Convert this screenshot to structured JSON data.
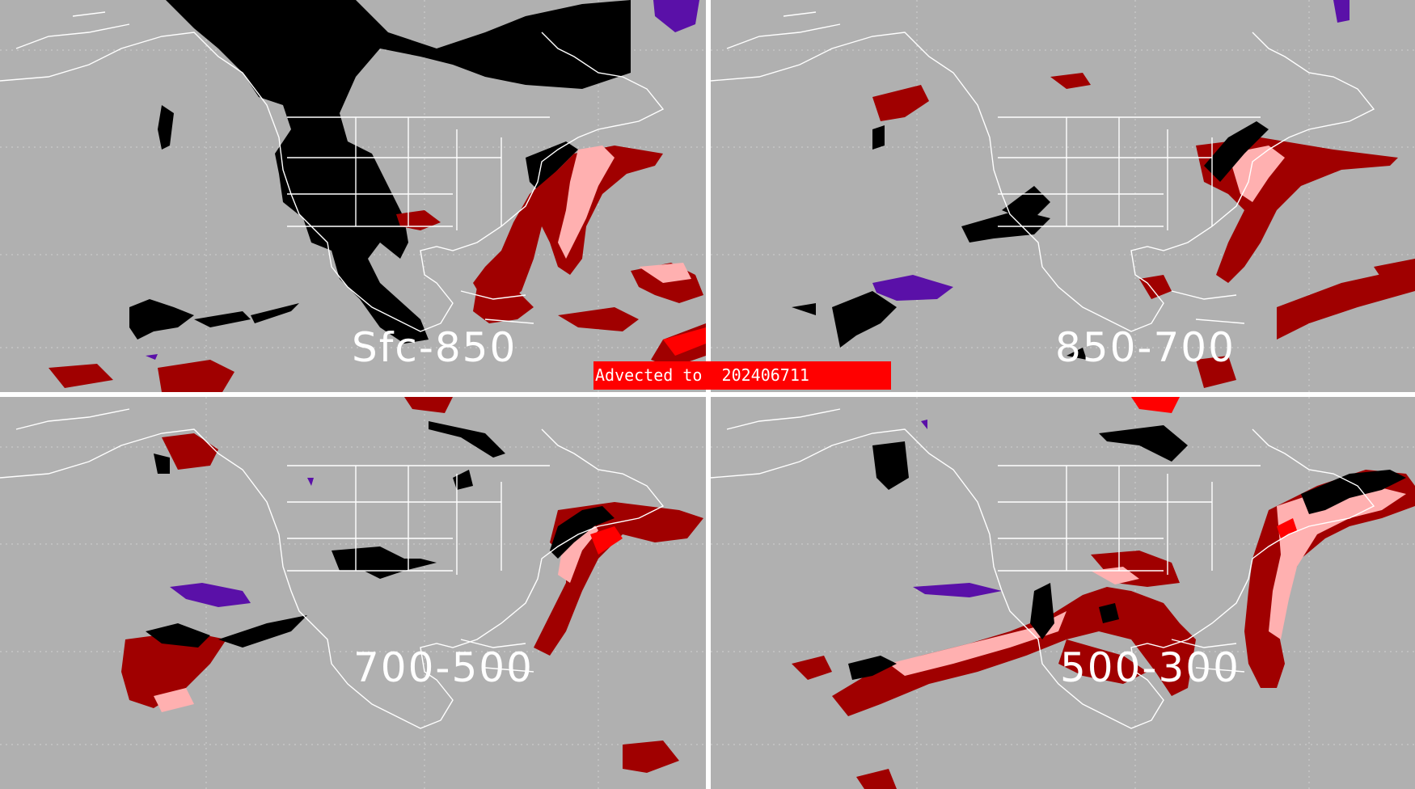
{
  "banner": {
    "text": "Advected to  202406711"
  },
  "panels": [
    {
      "id": "tl",
      "label": "Sfc-850"
    },
    {
      "id": "tr",
      "label": "850-700"
    },
    {
      "id": "bl",
      "label": "700-500"
    },
    {
      "id": "br",
      "label": "500-300"
    }
  ],
  "colors": {
    "background": "#b0b0b0",
    "divider": "#ffffff",
    "coastline": "#ffffff",
    "gridline": "#d8d8d8",
    "category_black": "#000000",
    "category_darkred": "#a00000",
    "category_pink": "#ffb0b0",
    "category_red": "#ff0000",
    "category_purple": "#5a10a8",
    "banner": "#ff0000"
  }
}
